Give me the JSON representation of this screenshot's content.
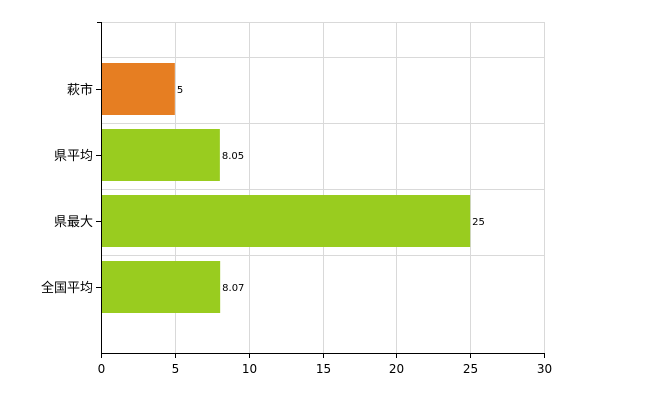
{
  "chart_data": {
    "type": "bar",
    "orientation": "horizontal",
    "categories": [
      "萩市",
      "県平均",
      "県最大",
      "全国平均"
    ],
    "values": [
      5,
      8.05,
      25,
      8.07
    ],
    "data_labels": [
      "5",
      "8.05",
      "25",
      "8.07"
    ],
    "bar_colors": [
      "#e67e22",
      "#99cc1f",
      "#99cc1f",
      "#99cc1f"
    ],
    "xlim": [
      0,
      30
    ],
    "x_ticks": [
      0,
      5,
      10,
      15,
      20,
      25,
      30
    ],
    "x_tick_labels": [
      "0",
      "5",
      "10",
      "15",
      "20",
      "25",
      "30"
    ],
    "grid": true,
    "title": "",
    "xlabel": "",
    "ylabel": ""
  },
  "colors": {
    "highlight": "#e67e22",
    "default": "#99cc1f",
    "grid": "#d9d9d9",
    "axis": "#000000"
  }
}
